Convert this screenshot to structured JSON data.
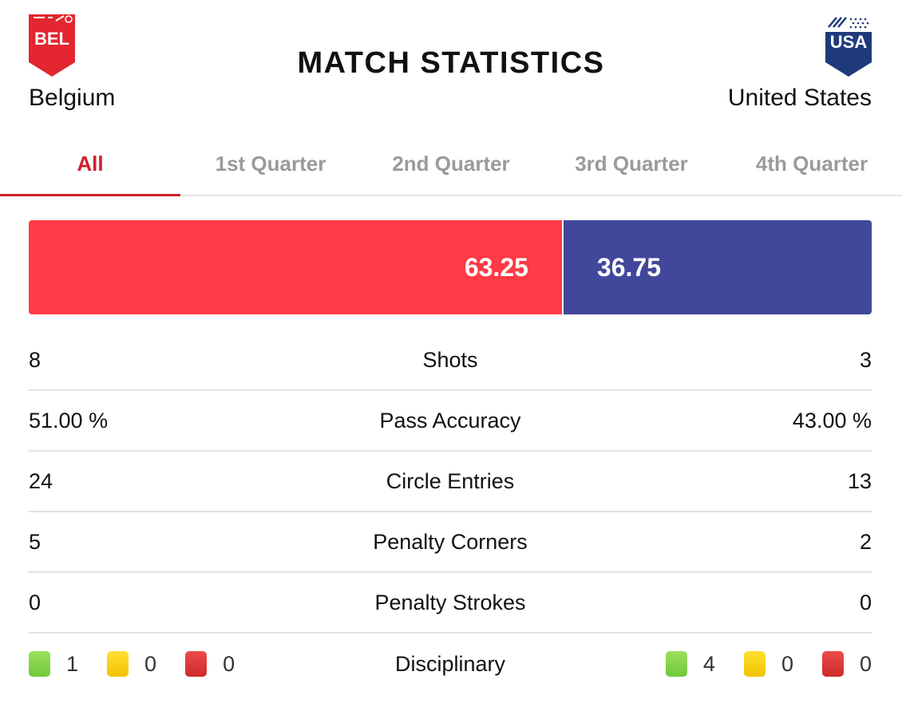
{
  "header": {
    "title": "MATCH STATISTICS",
    "home": {
      "code": "BEL",
      "name": "Belgium",
      "color": "#e3262f"
    },
    "away": {
      "code": "USA",
      "name": "United States",
      "color": "#1f3a7a"
    }
  },
  "tabs": [
    {
      "label": "All",
      "active": true
    },
    {
      "label": "1st Quarter",
      "active": false
    },
    {
      "label": "2nd Quarter",
      "active": false
    },
    {
      "label": "3rd Quarter",
      "active": false
    },
    {
      "label": "4th Quarter",
      "active": false
    }
  ],
  "possession": {
    "home": "63.25",
    "away": "36.75",
    "home_color": "#fe3a46",
    "away_color": "#41479b"
  },
  "stats": [
    {
      "name": "Shots",
      "home": "8",
      "away": "3"
    },
    {
      "name": "Pass Accuracy",
      "home": "51.00 %",
      "away": "43.00 %"
    },
    {
      "name": "Circle Entries",
      "home": "24",
      "away": "13"
    },
    {
      "name": "Penalty Corners",
      "home": "5",
      "away": "2"
    },
    {
      "name": "Penalty Strokes",
      "home": "0",
      "away": "0"
    }
  ],
  "disciplinary": {
    "name": "Disciplinary",
    "home": {
      "green": "1",
      "yellow": "0",
      "red": "0"
    },
    "away": {
      "green": "4",
      "yellow": "0",
      "red": "0"
    }
  }
}
